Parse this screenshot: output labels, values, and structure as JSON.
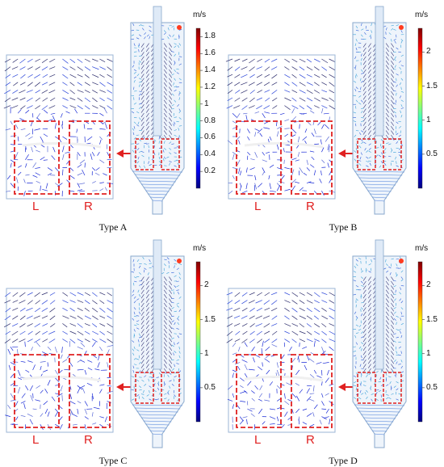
{
  "panels": [
    {
      "caption": "Type A",
      "unit": "m/s",
      "region_left": "L",
      "region_right": "R",
      "colorbar": {
        "max": 1.9,
        "ticks": [
          "1.8",
          "1.6",
          "1.4",
          "1.2",
          "1",
          "0.8",
          "0.6",
          "0.4",
          "0.2"
        ],
        "values": [
          1.8,
          1.6,
          1.4,
          1.2,
          1,
          0.8,
          0.6,
          0.4,
          0.2
        ]
      }
    },
    {
      "caption": "Type B",
      "unit": "m/s",
      "region_left": "L",
      "region_right": "R",
      "colorbar": {
        "max": 2.35,
        "ticks": [
          "2",
          "1.5",
          "1",
          "0.5"
        ],
        "values": [
          2,
          1.5,
          1,
          0.5
        ]
      }
    },
    {
      "caption": "Type C",
      "unit": "m/s",
      "region_left": "L",
      "region_right": "R",
      "colorbar": {
        "max": 2.35,
        "ticks": [
          "2",
          "1.5",
          "1",
          "0.5"
        ],
        "values": [
          2,
          1.5,
          1,
          0.5
        ]
      }
    },
    {
      "caption": "Type D",
      "unit": "m/s",
      "region_left": "L",
      "region_right": "R",
      "colorbar": {
        "max": 2.35,
        "ticks": [
          "2",
          "1.5",
          "1",
          "0.5"
        ],
        "values": [
          2,
          1.5,
          1,
          0.5
        ]
      }
    }
  ],
  "colors": {
    "highlight": "#e02020",
    "arrow": "#e02020",
    "field_low": "#1a2bd6",
    "field_high": "#ff3b1f",
    "colormap": [
      "#00007f",
      "#0000ff",
      "#0080ff",
      "#00ffff",
      "#80ff80",
      "#ffff00",
      "#ff8000",
      "#ff0000",
      "#7f0000"
    ]
  },
  "icons": {
    "pointer": "red-arrow-icon"
  }
}
